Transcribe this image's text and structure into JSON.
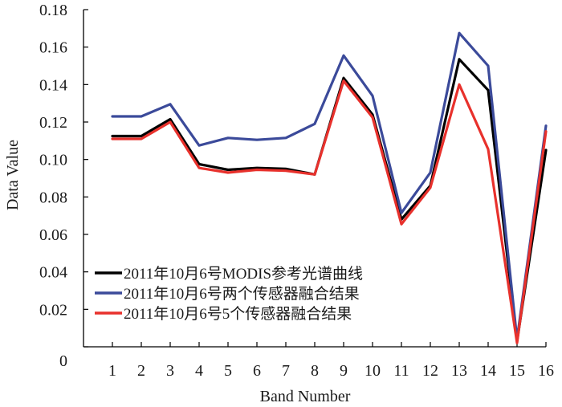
{
  "chart_data": {
    "type": "line",
    "title": "",
    "xlabel": "Band Number",
    "ylabel": "Data Value",
    "x": [
      1,
      2,
      3,
      4,
      5,
      6,
      7,
      8,
      9,
      10,
      11,
      12,
      13,
      14,
      15,
      16
    ],
    "x_tick_labels": [
      "1",
      "2",
      "3",
      "4",
      "5",
      "6",
      "7",
      "8",
      "9",
      "10",
      "11",
      "12",
      "13",
      "14",
      "15",
      "16"
    ],
    "xlim": [
      0,
      16
    ],
    "ylim": [
      0,
      0.18
    ],
    "y_ticks": [
      0,
      0.02,
      0.04,
      0.06,
      0.08,
      0.1,
      0.12,
      0.14,
      0.16,
      0.18
    ],
    "y_tick_labels": [
      "0",
      "0.02",
      "0.04",
      "0.06",
      "0.08",
      "0.10",
      "0.12",
      "0.14",
      "0.16",
      "0.18"
    ],
    "grid": false,
    "legend_position": "bottom-left",
    "series": [
      {
        "name": "2011年10月6号MODIS参考光谱曲线",
        "color": "#000000",
        "values": [
          0.1125,
          0.1125,
          0.1215,
          0.0975,
          0.0945,
          0.0955,
          0.095,
          0.092,
          0.1435,
          0.124,
          0.068,
          0.086,
          0.1535,
          0.137,
          0.003,
          0.105
        ]
      },
      {
        "name": "2011年10月6号两个传感器融合结果",
        "color": "#3b4a9a",
        "values": [
          0.123,
          0.123,
          0.1295,
          0.1075,
          0.1115,
          0.1105,
          0.1115,
          0.119,
          0.1555,
          0.134,
          0.0715,
          0.093,
          0.1675,
          0.15,
          0.004,
          0.118
        ]
      },
      {
        "name": "2011年10月6号5个传感器融合结果",
        "color": "#e8312c",
        "values": [
          0.111,
          0.111,
          0.12,
          0.0955,
          0.093,
          0.0945,
          0.094,
          0.092,
          0.142,
          0.1225,
          0.0655,
          0.085,
          0.14,
          0.1055,
          0.002,
          0.115
        ]
      }
    ]
  }
}
